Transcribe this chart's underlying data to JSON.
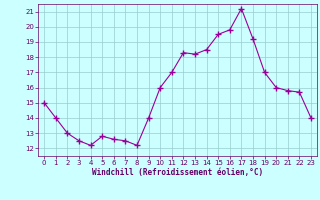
{
  "x": [
    0,
    1,
    2,
    3,
    4,
    5,
    6,
    7,
    8,
    9,
    10,
    11,
    12,
    13,
    14,
    15,
    16,
    17,
    18,
    19,
    20,
    21,
    22,
    23
  ],
  "y": [
    15.0,
    14.0,
    13.0,
    12.5,
    12.2,
    12.8,
    12.6,
    12.5,
    12.2,
    14.0,
    16.0,
    17.0,
    18.3,
    18.2,
    18.5,
    19.5,
    19.8,
    21.2,
    19.2,
    17.0,
    16.0,
    15.8,
    15.7,
    14.0
  ],
  "line_color": "#990099",
  "marker": "+",
  "marker_size": 4,
  "bg_color": "#ccffff",
  "grid_color": "#99cccc",
  "xlabel": "Windchill (Refroidissement éolien,°C)",
  "xlabel_color": "#660066",
  "tick_color": "#660066",
  "ylim": [
    11.5,
    21.5
  ],
  "xlim": [
    -0.5,
    23.5
  ],
  "yticks": [
    12,
    13,
    14,
    15,
    16,
    17,
    18,
    19,
    20,
    21
  ],
  "xticks": [
    0,
    1,
    2,
    3,
    4,
    5,
    6,
    7,
    8,
    9,
    10,
    11,
    12,
    13,
    14,
    15,
    16,
    17,
    18,
    19,
    20,
    21,
    22,
    23
  ]
}
